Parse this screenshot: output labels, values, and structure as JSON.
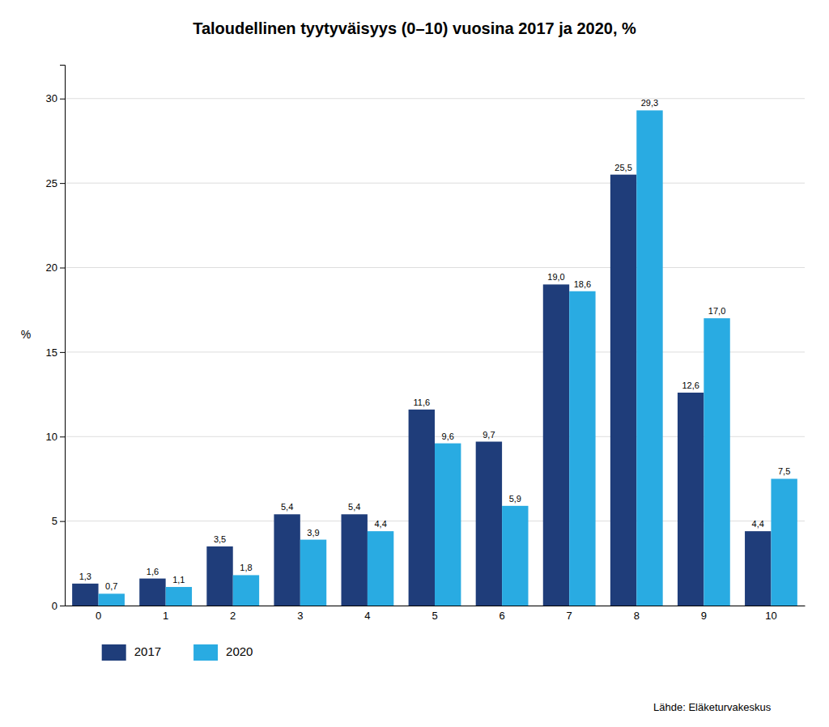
{
  "chart_data": {
    "type": "bar",
    "title": "Taloudellinen tyytyväisyys (0–10) vuosina 2017 ja 2020, %",
    "ylabel": "%",
    "annotations": [
      "Lähde: Eläketurvakeskus"
    ],
    "categories": [
      0,
      1,
      2,
      3,
      4,
      5,
      6,
      7,
      8,
      9,
      10
    ],
    "series": [
      {
        "name": "2017",
        "color": "#1F3D7A",
        "values": [
          1.3,
          1.6,
          3.5,
          5.4,
          5.4,
          11.6,
          9.7,
          19.0,
          25.5,
          12.6,
          4.4
        ],
        "value_labels": [
          "1,3",
          "1,6",
          "3,5",
          "5,4",
          "5,4",
          "11,6",
          "9,7",
          "19,0",
          "25,5",
          "12,6",
          "4,4"
        ]
      },
      {
        "name": "2020",
        "color": "#29ABE2",
        "values": [
          0.7,
          1.1,
          1.8,
          3.9,
          4.4,
          9.6,
          5.9,
          18.6,
          29.3,
          17.0,
          7.5
        ],
        "value_labels": [
          "0,7",
          "1,1",
          "1,8",
          "3,9",
          "4,4",
          "9,6",
          "5,9",
          "18,6",
          "29,3",
          "17,0",
          "7,5"
        ]
      }
    ],
    "ylim": [
      0,
      32
    ],
    "yticks": [
      0,
      5,
      10,
      15,
      20,
      25,
      30
    ],
    "grid": true,
    "legend": "bottom",
    "data_labels": true
  }
}
